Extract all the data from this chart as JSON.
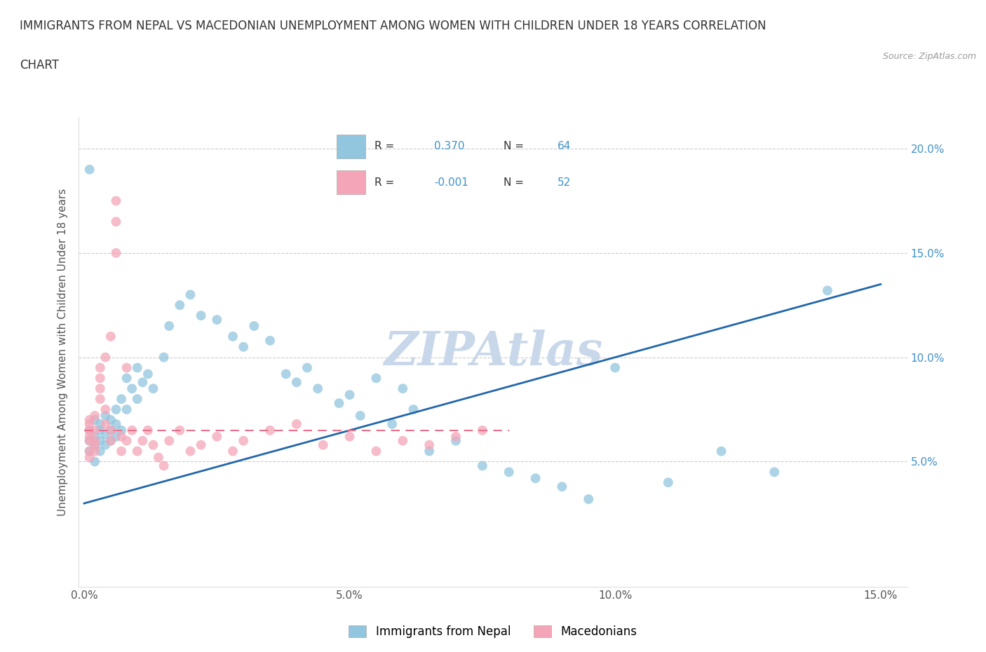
{
  "title_line1": "IMMIGRANTS FROM NEPAL VS MACEDONIAN UNEMPLOYMENT AMONG WOMEN WITH CHILDREN UNDER 18 YEARS CORRELATION",
  "title_line2": "CHART",
  "source_text": "Source: ZipAtlas.com",
  "ylabel": "Unemployment Among Women with Children Under 18 years",
  "legend_label1": "Immigrants from Nepal",
  "legend_label2": "Macedonians",
  "R1": 0.37,
  "N1": 64,
  "R2": -0.001,
  "N2": 52,
  "xlim": [
    -0.001,
    0.155
  ],
  "ylim": [
    -0.01,
    0.215
  ],
  "xticks": [
    0.0,
    0.05,
    0.1,
    0.15
  ],
  "xtick_labels": [
    "0.0%",
    "5.0%",
    "10.0%",
    "15.0%"
  ],
  "yticks": [
    0.05,
    0.1,
    0.15,
    0.2
  ],
  "ytick_labels": [
    "5.0%",
    "10.0%",
    "15.0%",
    "20.0%"
  ],
  "color_blue": "#92c5de",
  "color_pink": "#f4a6b8",
  "line_color_blue": "#2166ac",
  "line_color_pink": "#e8708a",
  "ytick_color": "#4292c6",
  "watermark_color": "#c8d8ea",
  "nepal_x": [
    0.001,
    0.001,
    0.001,
    0.002,
    0.002,
    0.002,
    0.002,
    0.003,
    0.003,
    0.003,
    0.003,
    0.004,
    0.004,
    0.004,
    0.005,
    0.005,
    0.005,
    0.006,
    0.006,
    0.006,
    0.007,
    0.007,
    0.008,
    0.008,
    0.009,
    0.01,
    0.01,
    0.011,
    0.012,
    0.013,
    0.015,
    0.016,
    0.018,
    0.02,
    0.022,
    0.025,
    0.028,
    0.03,
    0.032,
    0.035,
    0.038,
    0.04,
    0.042,
    0.044,
    0.048,
    0.05,
    0.052,
    0.055,
    0.058,
    0.06,
    0.062,
    0.065,
    0.07,
    0.075,
    0.08,
    0.085,
    0.09,
    0.095,
    0.1,
    0.11,
    0.12,
    0.13,
    0.14,
    0.001
  ],
  "nepal_y": [
    0.06,
    0.055,
    0.065,
    0.062,
    0.058,
    0.07,
    0.05,
    0.065,
    0.06,
    0.055,
    0.068,
    0.072,
    0.058,
    0.063,
    0.07,
    0.065,
    0.06,
    0.075,
    0.068,
    0.062,
    0.08,
    0.065,
    0.09,
    0.075,
    0.085,
    0.095,
    0.08,
    0.088,
    0.092,
    0.085,
    0.1,
    0.115,
    0.125,
    0.13,
    0.12,
    0.118,
    0.11,
    0.105,
    0.115,
    0.108,
    0.092,
    0.088,
    0.095,
    0.085,
    0.078,
    0.082,
    0.072,
    0.09,
    0.068,
    0.085,
    0.075,
    0.055,
    0.06,
    0.048,
    0.045,
    0.042,
    0.038,
    0.032,
    0.095,
    0.04,
    0.055,
    0.045,
    0.132,
    0.19
  ],
  "macedonian_x": [
    0.001,
    0.001,
    0.001,
    0.001,
    0.001,
    0.001,
    0.001,
    0.002,
    0.002,
    0.002,
    0.002,
    0.002,
    0.003,
    0.003,
    0.003,
    0.003,
    0.004,
    0.004,
    0.004,
    0.005,
    0.005,
    0.005,
    0.006,
    0.006,
    0.006,
    0.007,
    0.007,
    0.008,
    0.008,
    0.009,
    0.01,
    0.011,
    0.012,
    0.013,
    0.014,
    0.015,
    0.016,
    0.018,
    0.02,
    0.022,
    0.025,
    0.028,
    0.03,
    0.035,
    0.04,
    0.045,
    0.05,
    0.055,
    0.06,
    0.065,
    0.07,
    0.075
  ],
  "macedonian_y": [
    0.06,
    0.055,
    0.062,
    0.065,
    0.052,
    0.07,
    0.068,
    0.058,
    0.065,
    0.072,
    0.06,
    0.055,
    0.08,
    0.09,
    0.095,
    0.085,
    0.1,
    0.068,
    0.075,
    0.11,
    0.065,
    0.06,
    0.165,
    0.15,
    0.175,
    0.055,
    0.062,
    0.095,
    0.06,
    0.065,
    0.055,
    0.06,
    0.065,
    0.058,
    0.052,
    0.048,
    0.06,
    0.065,
    0.055,
    0.058,
    0.062,
    0.055,
    0.06,
    0.065,
    0.068,
    0.058,
    0.062,
    0.055,
    0.06,
    0.058,
    0.062,
    0.065
  ]
}
